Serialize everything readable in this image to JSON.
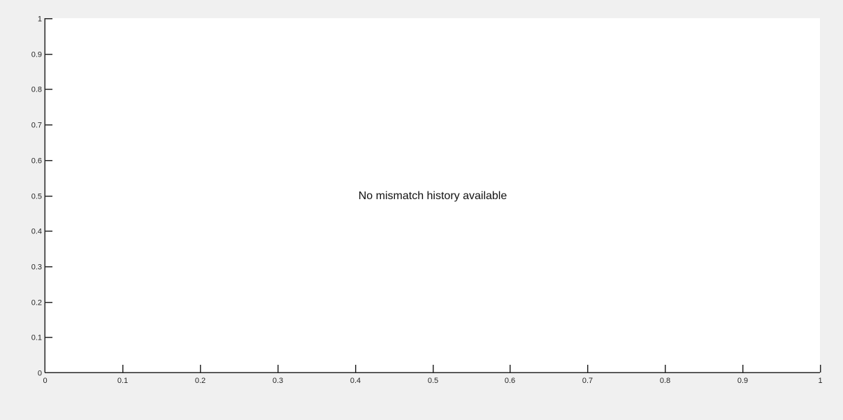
{
  "chart_data": {
    "type": "line",
    "title": "",
    "xlabel": "",
    "ylabel": "",
    "xlim": [
      0,
      1
    ],
    "ylim": [
      0,
      1
    ],
    "xticks": [
      "0",
      "0.1",
      "0.2",
      "0.3",
      "0.4",
      "0.5",
      "0.6",
      "0.7",
      "0.8",
      "0.9",
      "1"
    ],
    "yticks": [
      "0",
      "0.1",
      "0.2",
      "0.3",
      "0.4",
      "0.5",
      "0.6",
      "0.7",
      "0.8",
      "0.9",
      "1"
    ],
    "series": [],
    "grid": false,
    "annotation": "No mismatch history available"
  },
  "colors": {
    "figure_background": "#f0f0f0",
    "axes_background": "#ffffff",
    "axis_color": "#262626"
  }
}
